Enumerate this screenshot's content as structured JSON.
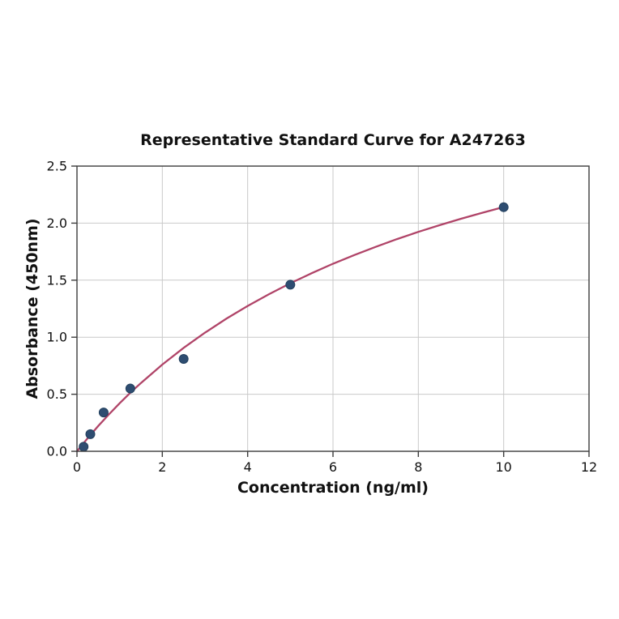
{
  "chart_data": {
    "type": "scatter",
    "title": "Representative Standard Curve for A247263",
    "xlabel": "Concentration (ng/ml)",
    "ylabel": "Absorbance (450nm)",
    "xlim": [
      0,
      12
    ],
    "ylim": [
      0,
      2.5
    ],
    "grid": true,
    "legend": "none",
    "xticks": [
      {
        "v": 0,
        "label": "0"
      },
      {
        "v": 2,
        "label": "2"
      },
      {
        "v": 4,
        "label": "4"
      },
      {
        "v": 6,
        "label": "6"
      },
      {
        "v": 8,
        "label": "8"
      },
      {
        "v": 10,
        "label": "10"
      },
      {
        "v": 12,
        "label": "12"
      }
    ],
    "yticks": [
      {
        "v": 0.0,
        "label": "0.0"
      },
      {
        "v": 0.5,
        "label": "0.5"
      },
      {
        "v": 1.0,
        "label": "1.0"
      },
      {
        "v": 1.5,
        "label": "1.5"
      },
      {
        "v": 2.0,
        "label": "2.0"
      },
      {
        "v": 2.5,
        "label": "2.5"
      }
    ],
    "points": [
      {
        "x": 0.156,
        "y": 0.04
      },
      {
        "x": 0.313,
        "y": 0.15
      },
      {
        "x": 0.625,
        "y": 0.34
      },
      {
        "x": 1.25,
        "y": 0.55
      },
      {
        "x": 2.5,
        "y": 0.81
      },
      {
        "x": 5,
        "y": 1.46
      },
      {
        "x": 10,
        "y": 2.14
      }
    ],
    "curve": {
      "name": "fitted-standard-curve",
      "x": [
        0,
        0.125,
        0.25,
        0.5,
        0.75,
        1,
        1.25,
        1.5,
        2,
        2.5,
        3,
        3.5,
        4,
        4.5,
        5,
        5.5,
        6,
        6.5,
        7,
        7.5,
        8,
        8.5,
        9,
        9.5,
        10
      ],
      "y": [
        0,
        0.058,
        0.114,
        0.222,
        0.324,
        0.421,
        0.513,
        0.599,
        0.76,
        0.907,
        1.04,
        1.162,
        1.274,
        1.377,
        1.473,
        1.561,
        1.644,
        1.72,
        1.792,
        1.86,
        1.923,
        1.982,
        2.038,
        2.091,
        2.141
      ]
    },
    "colors": {
      "curve": "#b04468",
      "marker": "#2e4d71",
      "marker_edge": "#23405e",
      "grid": "#c9c9c9",
      "spine": "#3c3c3c",
      "text": "#111111"
    }
  }
}
